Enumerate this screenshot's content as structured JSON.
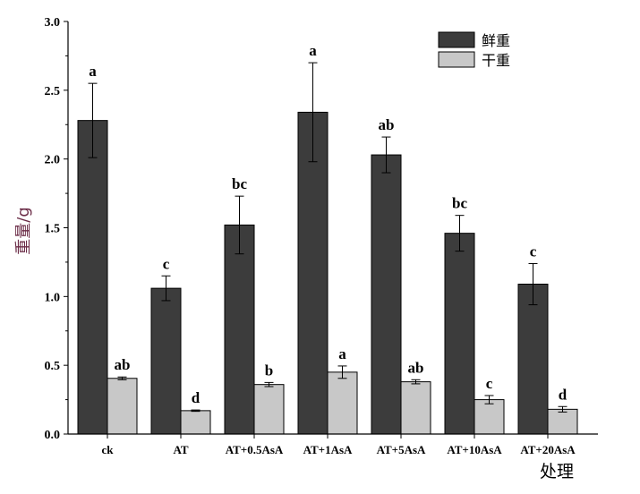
{
  "chart_data": {
    "type": "bar",
    "title": "",
    "xlabel": "处理",
    "ylabel": "重量/g",
    "ylim": [
      0,
      3.0
    ],
    "yticks": [
      "0.0",
      "0.5",
      "1.0",
      "1.5",
      "2.0",
      "2.5",
      "3.0"
    ],
    "categories": [
      "ck",
      "AT",
      "AT+0.5AsA",
      "AT+1AsA",
      "AT+5AsA",
      "AT+10AsA",
      "AT+20AsA"
    ],
    "series": [
      {
        "name": "鲜重",
        "color": "#3c3c3c",
        "values": [
          2.28,
          1.06,
          1.52,
          2.34,
          2.03,
          1.46,
          1.09
        ],
        "errors": [
          0.27,
          0.09,
          0.21,
          0.36,
          0.13,
          0.13,
          0.15
        ],
        "letters": [
          "a",
          "c",
          "bc",
          "a",
          "ab",
          "bc",
          "c"
        ]
      },
      {
        "name": "干重",
        "color": "#c8c8c8",
        "values": [
          0.405,
          0.17,
          0.36,
          0.45,
          0.38,
          0.25,
          0.18
        ],
        "errors": [
          0.01,
          0.005,
          0.015,
          0.045,
          0.015,
          0.03,
          0.02
        ],
        "letters": [
          "ab",
          "d",
          "b",
          "a",
          "ab",
          "c",
          "d"
        ]
      }
    ],
    "grid": false,
    "legend_position": "top-right"
  }
}
